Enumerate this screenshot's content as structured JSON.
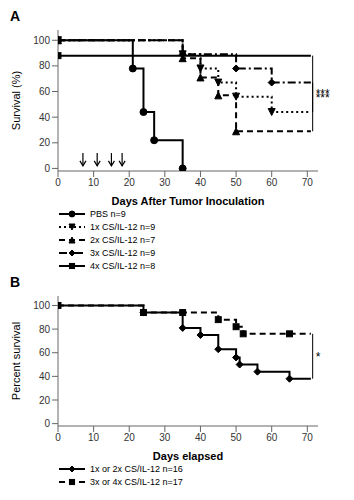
{
  "chart_data": [
    {
      "type": "step",
      "title": "A",
      "x_label": "Days After Tumor Inoculation",
      "y_label": "Survival (%)",
      "xlim": [
        0,
        73
      ],
      "ylim": [
        -2,
        108
      ],
      "xticks": [
        0,
        10,
        20,
        30,
        40,
        50,
        60,
        70
      ],
      "yticks": [
        0,
        20,
        40,
        60,
        80,
        100
      ],
      "grid": false,
      "legend": "bottom",
      "series": [
        {
          "name": "PBS n=9",
          "color": "#000000",
          "line_style": "solid",
          "marker": "circle",
          "x": [
            0,
            21,
            21,
            24,
            24,
            27,
            27,
            35,
            35
          ],
          "values": [
            100,
            100,
            78,
            78,
            44,
            44,
            22,
            22,
            0
          ]
        },
        {
          "name": "1x CS/IL-12 n=9",
          "color": "#000000",
          "line_style": "dotted",
          "marker": "triangle_down",
          "x": [
            0,
            35,
            35,
            40,
            40,
            45,
            45,
            50,
            50,
            60,
            60,
            71
          ],
          "values": [
            100,
            100,
            89,
            89,
            78,
            78,
            67,
            67,
            56,
            56,
            44,
            44
          ]
        },
        {
          "name": "2x CS/IL-12 n=7",
          "color": "#000000",
          "line_style": "dashed",
          "marker": "triangle_up",
          "x": [
            0,
            35,
            35,
            40,
            40,
            45,
            45,
            50,
            50,
            71
          ],
          "values": [
            100,
            100,
            86,
            86,
            71,
            71,
            57,
            57,
            29,
            29
          ]
        },
        {
          "name": "3x CS/IL-12 n=9",
          "color": "#000000",
          "line_style": "dashdot",
          "marker": "diamond",
          "x": [
            0,
            35,
            35,
            50,
            50,
            60,
            60,
            71
          ],
          "values": [
            100,
            100,
            89,
            89,
            78,
            78,
            67,
            67
          ]
        },
        {
          "name": "4x CS/IL-12 n=8",
          "color": "#000000",
          "line_style": "solid",
          "marker": "square",
          "x": [
            0,
            71
          ],
          "values": [
            88,
            88
          ]
        }
      ],
      "arrows": [
        {
          "x": 7,
          "y_start": 12,
          "y_end": 2
        },
        {
          "x": 11,
          "y_start": 12,
          "y_end": 2
        },
        {
          "x": 15,
          "y_start": 12,
          "y_end": 2
        },
        {
          "x": 18,
          "y_start": 12,
          "y_end": 2
        }
      ],
      "annotations": [
        {
          "text": "***",
          "x": 71.5,
          "y_top": 88,
          "y_bottom": 29
        },
        {
          "text": "***",
          "x": 71.5,
          "y_top": 67,
          "y_bottom": 44
        }
      ]
    },
    {
      "type": "step",
      "title": "B",
      "x_label": "Days elapsed",
      "y_label": "Percent survival",
      "xlim": [
        0,
        73
      ],
      "ylim": [
        -2,
        108
      ],
      "xticks": [
        0,
        10,
        20,
        30,
        40,
        50,
        60,
        70
      ],
      "yticks": [
        0,
        20,
        40,
        60,
        80,
        100
      ],
      "grid": false,
      "legend": "bottom",
      "series": [
        {
          "name": "1x or 2x CS/IL-12 n=16",
          "color": "#000000",
          "line_style": "solid",
          "marker": "diamond",
          "x": [
            0,
            24,
            24,
            35,
            35,
            40,
            40,
            45,
            45,
            50,
            50,
            51,
            51,
            56,
            56,
            65,
            65,
            71
          ],
          "values": [
            100,
            100,
            94,
            94,
            81,
            81,
            75,
            75,
            63,
            63,
            56,
            56,
            50,
            50,
            44,
            44,
            38,
            38
          ]
        },
        {
          "name": "3x or 4x CS/IL-12 n=17",
          "color": "#000000",
          "line_style": "dashed",
          "marker": "square",
          "x": [
            0,
            24,
            24,
            35,
            35,
            45,
            45,
            50,
            50,
            52,
            52,
            65,
            65,
            71
          ],
          "values": [
            100,
            100,
            94,
            94,
            94,
            94,
            88,
            88,
            82,
            82,
            76,
            76,
            76,
            76
          ]
        }
      ],
      "arrows": [],
      "annotations": [
        {
          "text": "*",
          "x": 71.5,
          "y_top": 76,
          "y_bottom": 38
        }
      ]
    }
  ]
}
